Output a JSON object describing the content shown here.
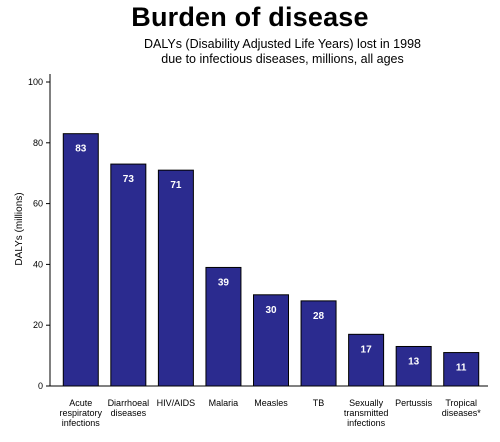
{
  "chart_data": {
    "type": "bar",
    "title": "Burden of disease",
    "subtitle": [
      "DALYs (Disability Adjusted Life Years) lost in 1998",
      "due to infectious diseases, millions, all ages"
    ],
    "ylabel": "DALYs (millions)",
    "xlabel": "",
    "ylim": [
      0,
      100
    ],
    "yticks": [
      0,
      20,
      40,
      60,
      80,
      100
    ],
    "grid": false,
    "categories": [
      [
        "Acute",
        "respiratory",
        "infections"
      ],
      [
        "Diarrhoeal",
        "diseases"
      ],
      [
        "HIV/AIDS"
      ],
      [
        "Malaria"
      ],
      [
        "Measles"
      ],
      [
        "TB"
      ],
      [
        "Sexually",
        "transmitted",
        "infections"
      ],
      [
        "Pertussis"
      ],
      [
        "Tropical",
        "diseases*"
      ]
    ],
    "values": [
      83,
      73,
      71,
      39,
      30,
      28,
      17,
      13,
      11
    ],
    "bar_color": "#2b2b8f",
    "bar_outline": "#000000"
  }
}
